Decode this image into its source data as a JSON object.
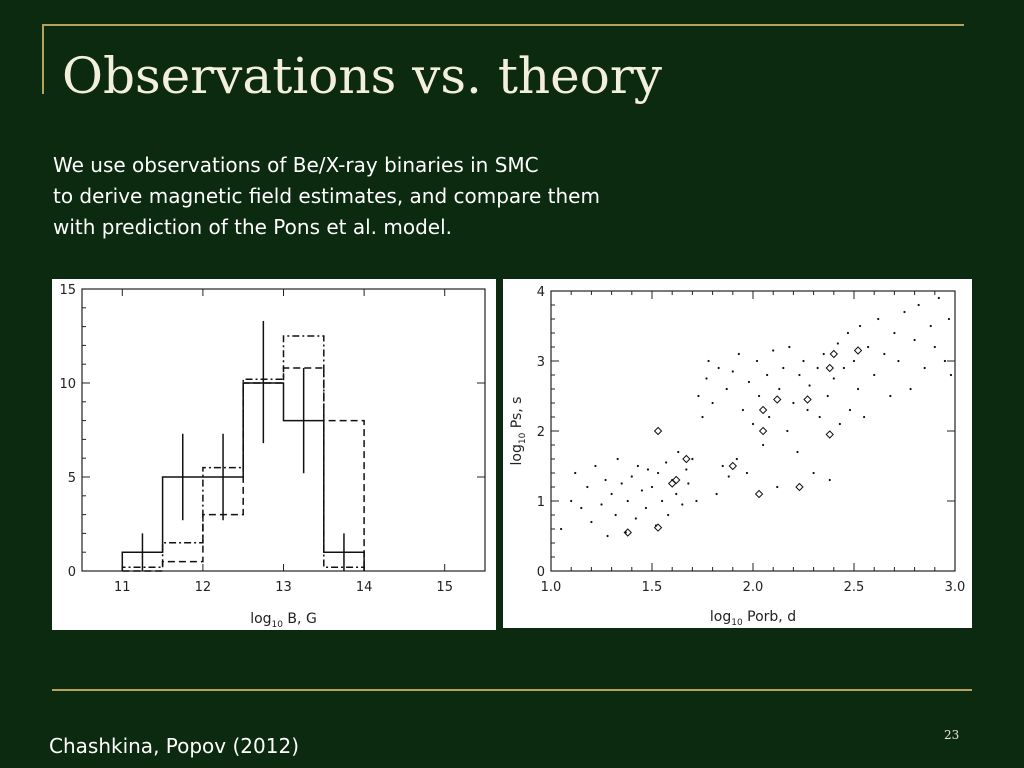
{
  "slide": {
    "title": "Observations vs. theory",
    "body_lines": [
      "We use observations of Be/X-ray binaries in SMC",
      "to derive magnetic field estimates, and compare them",
      "with prediction of the Pons et al. model."
    ],
    "footer": "Chashkina, Popov (2012)",
    "page_number": "23",
    "colors": {
      "background": "#0b2a0f",
      "accent": "#b8a25a",
      "title": "#f3efdd"
    }
  },
  "chart_data": [
    {
      "type": "bar",
      "subtype": "step-histogram",
      "xlabel_base": "log",
      "xlabel_sub": "10",
      "xlabel_rest": " B, G",
      "ylabel": "",
      "xlim": [
        10.5,
        15.5
      ],
      "ylim": [
        0,
        15
      ],
      "xticks": [
        "11",
        "12",
        "13",
        "14",
        "15"
      ],
      "yticks": [
        "0",
        "5",
        "10",
        "15"
      ],
      "bin_edges": [
        11,
        11.5,
        12,
        12.5,
        13,
        13.5,
        14
      ],
      "series": [
        {
          "style": "solid",
          "values": [
            1,
            5,
            5,
            10,
            8,
            1
          ],
          "errors": [
            [
              0,
              2
            ],
            [
              2.7,
              7.3
            ],
            [
              2.7,
              7.3
            ],
            [
              6.8,
              13.3
            ],
            [
              5.2,
              10.8
            ],
            [
              0,
              2
            ]
          ]
        },
        {
          "style": "dashed",
          "values": [
            0,
            0.5,
            3,
            10,
            10.8,
            8
          ]
        },
        {
          "style": "dashdot",
          "values": [
            0.2,
            1.5,
            5.5,
            10.2,
            12.5,
            0.2
          ]
        }
      ]
    },
    {
      "type": "scatter",
      "xlabel_base": "log",
      "xlabel_sub": "10",
      "xlabel_rest": " Porb, d",
      "ylabel_base": "log",
      "ylabel_sub": "10",
      "ylabel_rest": " Ps, s",
      "xlim": [
        1.0,
        3.0
      ],
      "ylim": [
        0,
        4
      ],
      "xticks": [
        "1.0",
        "1.5",
        "2.0",
        "2.5",
        "3.0"
      ],
      "yticks": [
        "0",
        "1",
        "2",
        "3",
        "4"
      ],
      "series": [
        {
          "marker": "dot",
          "points": [
            [
              1.05,
              0.6
            ],
            [
              1.1,
              1.0
            ],
            [
              1.12,
              1.4
            ],
            [
              1.15,
              0.9
            ],
            [
              1.18,
              1.2
            ],
            [
              1.2,
              0.7
            ],
            [
              1.22,
              1.5
            ],
            [
              1.25,
              0.95
            ],
            [
              1.27,
              1.3
            ],
            [
              1.28,
              0.5
            ],
            [
              1.3,
              1.1
            ],
            [
              1.32,
              0.8
            ],
            [
              1.33,
              1.6
            ],
            [
              1.35,
              1.25
            ],
            [
              1.37,
              0.55
            ],
            [
              1.38,
              1.0
            ],
            [
              1.4,
              1.35
            ],
            [
              1.42,
              0.75
            ],
            [
              1.43,
              1.5
            ],
            [
              1.45,
              1.15
            ],
            [
              1.47,
              0.9
            ],
            [
              1.48,
              1.45
            ],
            [
              1.5,
              1.2
            ],
            [
              1.52,
              0.65
            ],
            [
              1.53,
              1.4
            ],
            [
              1.55,
              1.0
            ],
            [
              1.57,
              1.55
            ],
            [
              1.58,
              0.8
            ],
            [
              1.6,
              1.3
            ],
            [
              1.62,
              1.1
            ],
            [
              1.63,
              1.7
            ],
            [
              1.65,
              0.95
            ],
            [
              1.67,
              1.45
            ],
            [
              1.68,
              1.25
            ],
            [
              1.7,
              1.6
            ],
            [
              1.72,
              1.0
            ],
            [
              1.73,
              2.5
            ],
            [
              1.75,
              2.2
            ],
            [
              1.77,
              2.75
            ],
            [
              1.78,
              3.0
            ],
            [
              1.8,
              2.4
            ],
            [
              1.82,
              1.1
            ],
            [
              1.83,
              2.9
            ],
            [
              1.85,
              1.5
            ],
            [
              1.87,
              2.6
            ],
            [
              1.88,
              1.35
            ],
            [
              1.9,
              2.85
            ],
            [
              1.92,
              1.6
            ],
            [
              1.93,
              3.1
            ],
            [
              1.95,
              2.3
            ],
            [
              1.97,
              1.4
            ],
            [
              1.98,
              2.7
            ],
            [
              2.0,
              2.1
            ],
            [
              2.02,
              3.0
            ],
            [
              2.03,
              2.5
            ],
            [
              2.05,
              1.8
            ],
            [
              2.07,
              2.8
            ],
            [
              2.08,
              2.2
            ],
            [
              2.1,
              3.15
            ],
            [
              2.12,
              1.2
            ],
            [
              2.13,
              2.6
            ],
            [
              2.15,
              2.9
            ],
            [
              2.17,
              2.0
            ],
            [
              2.18,
              3.2
            ],
            [
              2.2,
              2.4
            ],
            [
              2.22,
              1.7
            ],
            [
              2.23,
              2.8
            ],
            [
              2.25,
              3.0
            ],
            [
              2.27,
              2.3
            ],
            [
              2.28,
              2.65
            ],
            [
              2.3,
              1.4
            ],
            [
              2.32,
              2.9
            ],
            [
              2.33,
              2.2
            ],
            [
              2.35,
              3.1
            ],
            [
              2.37,
              2.5
            ],
            [
              2.38,
              1.3
            ],
            [
              2.4,
              2.75
            ],
            [
              2.42,
              3.25
            ],
            [
              2.43,
              2.1
            ],
            [
              2.45,
              2.9
            ],
            [
              2.47,
              3.4
            ],
            [
              2.48,
              2.3
            ],
            [
              2.5,
              3.0
            ],
            [
              2.52,
              2.6
            ],
            [
              2.53,
              3.5
            ],
            [
              2.55,
              2.2
            ],
            [
              2.57,
              3.2
            ],
            [
              2.6,
              2.8
            ],
            [
              2.62,
              3.6
            ],
            [
              2.65,
              3.1
            ],
            [
              2.68,
              2.5
            ],
            [
              2.7,
              3.4
            ],
            [
              2.72,
              3.0
            ],
            [
              2.75,
              3.7
            ],
            [
              2.78,
              2.6
            ],
            [
              2.8,
              3.3
            ],
            [
              2.82,
              3.8
            ],
            [
              2.85,
              2.9
            ],
            [
              2.88,
              3.5
            ],
            [
              2.9,
              3.2
            ],
            [
              2.92,
              3.9
            ],
            [
              2.95,
              3.0
            ],
            [
              2.97,
              3.6
            ],
            [
              2.98,
              2.8
            ]
          ]
        },
        {
          "marker": "diamond",
          "points": [
            [
              1.38,
              0.55
            ],
            [
              1.53,
              2.0
            ],
            [
              1.53,
              0.62
            ],
            [
              1.6,
              1.25
            ],
            [
              1.62,
              1.3
            ],
            [
              1.67,
              1.6
            ],
            [
              1.9,
              1.5
            ],
            [
              2.03,
              1.1
            ],
            [
              2.05,
              2.3
            ],
            [
              2.05,
              2.0
            ],
            [
              2.12,
              2.45
            ],
            [
              2.23,
              1.2
            ],
            [
              2.27,
              2.45
            ],
            [
              2.38,
              2.9
            ],
            [
              2.4,
              3.1
            ],
            [
              2.38,
              1.95
            ],
            [
              2.52,
              3.15
            ]
          ]
        }
      ]
    }
  ]
}
